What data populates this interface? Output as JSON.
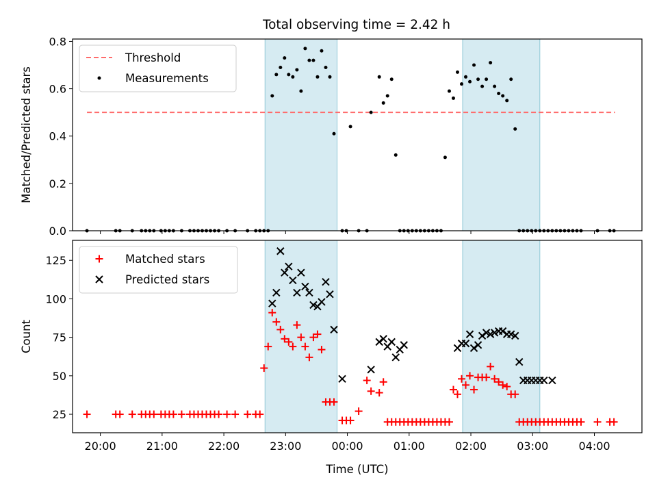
{
  "figure": {
    "title": "Total observing time = 2.42 h"
  },
  "chart_data": [
    {
      "type": "scatter",
      "panel": "top",
      "title": "Total observing time = 2.42 h",
      "xlabel": "",
      "ylabel": "Matched/Predicted stars",
      "xlim": [
        19.55,
        4.77
      ],
      "ylim": [
        0.0,
        0.81
      ],
      "yticks": [
        0.0,
        0.2,
        0.4,
        0.6,
        0.8
      ],
      "ytick_labels": [
        "0.0",
        "0.2",
        "0.4",
        "0.6",
        "0.8"
      ],
      "grid": false,
      "legend": "top-left",
      "shaded_intervals": [
        [
          "22:40",
          "23:50"
        ],
        [
          "01:52",
          "03:07"
        ]
      ],
      "threshold": {
        "name": "Threshold",
        "value": 0.5,
        "x_range": [
          "19:47",
          "04:20"
        ],
        "color": "#ff6b6b"
      },
      "series": [
        {
          "name": "Measurements",
          "color": "#000000",
          "x": [
            "19:47",
            "20:15",
            "20:19",
            "20:31",
            "20:40",
            "20:44",
            "20:48",
            "20:52",
            "20:59",
            "21:03",
            "21:07",
            "21:11",
            "21:19",
            "21:27",
            "21:31",
            "21:35",
            "21:39",
            "21:43",
            "21:47",
            "21:51",
            "21:55",
            "22:03",
            "22:11",
            "22:23",
            "22:31",
            "22:35",
            "22:39",
            "22:43",
            "22:47",
            "22:51",
            "22:55",
            "22:59",
            "23:03",
            "23:07",
            "23:11",
            "23:15",
            "23:19",
            "23:23",
            "23:27",
            "23:31",
            "23:35",
            "23:39",
            "23:43",
            "23:47",
            "23:55",
            "23:59",
            "00:03",
            "00:11",
            "00:19",
            "00:23",
            "00:31",
            "00:35",
            "00:39",
            "00:43",
            "00:47",
            "00:51",
            "00:55",
            "00:59",
            "01:03",
            "01:07",
            "01:11",
            "01:15",
            "01:19",
            "01:23",
            "01:27",
            "01:31",
            "01:35",
            "01:39",
            "01:43",
            "01:47",
            "01:51",
            "01:55",
            "01:59",
            "02:03",
            "02:07",
            "02:11",
            "02:15",
            "02:19",
            "02:23",
            "02:27",
            "02:31",
            "02:35",
            "02:39",
            "02:43",
            "02:47",
            "02:51",
            "02:55",
            "02:59",
            "03:03",
            "03:07",
            "03:11",
            "03:15",
            "03:19",
            "03:23",
            "03:27",
            "03:31",
            "03:35",
            "03:39",
            "03:43",
            "03:47",
            "04:03",
            "04:15",
            "04:19"
          ],
          "y": [
            0.0,
            0.0,
            0.0,
            0.0,
            0.0,
            0.0,
            0.0,
            0.0,
            0.0,
            0.0,
            0.0,
            0.0,
            0.0,
            0.0,
            0.0,
            0.0,
            0.0,
            0.0,
            0.0,
            0.0,
            0.0,
            0.0,
            0.0,
            0.0,
            0.0,
            0.0,
            0.0,
            0.0,
            0.57,
            0.66,
            0.69,
            0.73,
            0.66,
            0.65,
            0.68,
            0.59,
            0.77,
            0.72,
            0.72,
            0.65,
            0.76,
            0.69,
            0.65,
            0.41,
            0.0,
            0.0,
            0.44,
            0.0,
            0.0,
            0.5,
            0.65,
            0.54,
            0.57,
            0.64,
            0.32,
            0.0,
            0.0,
            0.0,
            0.0,
            0.0,
            0.0,
            0.0,
            0.0,
            0.0,
            0.0,
            0.0,
            0.31,
            0.59,
            0.56,
            0.67,
            0.62,
            0.65,
            0.63,
            0.7,
            0.64,
            0.61,
            0.64,
            0.71,
            0.61,
            0.58,
            0.57,
            0.55,
            0.64,
            0.43,
            0.0,
            0.0,
            0.0,
            0.0,
            0.0,
            0.0,
            0.0,
            0.0,
            0.0,
            0.0,
            0.0,
            0.0,
            0.0,
            0.0,
            0.0,
            0.0,
            0.0,
            0.0,
            0.0
          ]
        }
      ]
    },
    {
      "type": "scatter",
      "panel": "bottom",
      "title": "",
      "xlabel": "Time (UTC)",
      "ylabel": "Count",
      "xlim": [
        19.55,
        4.77
      ],
      "ylim": [
        13.0,
        138.0
      ],
      "yticks": [
        25,
        50,
        75,
        100,
        125
      ],
      "ytick_labels": [
        "25",
        "50",
        "75",
        "100",
        "125"
      ],
      "xticks": [
        "20:00",
        "21:00",
        "22:00",
        "23:00",
        "00:00",
        "01:00",
        "02:00",
        "03:00",
        "04:00"
      ],
      "grid": false,
      "legend": "top-left",
      "shaded_intervals": [
        [
          "22:40",
          "23:50"
        ],
        [
          "01:52",
          "03:07"
        ]
      ],
      "series": [
        {
          "name": "Matched stars",
          "color": "#ff0000",
          "marker": "+",
          "x": [
            "19:47",
            "20:15",
            "20:19",
            "20:31",
            "20:40",
            "20:44",
            "20:48",
            "20:52",
            "20:59",
            "21:03",
            "21:07",
            "21:11",
            "21:19",
            "21:27",
            "21:31",
            "21:35",
            "21:39",
            "21:43",
            "21:47",
            "21:51",
            "21:55",
            "22:03",
            "22:11",
            "22:23",
            "22:31",
            "22:35",
            "22:39",
            "22:43",
            "22:47",
            "22:51",
            "22:55",
            "22:59",
            "23:03",
            "23:07",
            "23:11",
            "23:15",
            "23:19",
            "23:23",
            "23:27",
            "23:31",
            "23:35",
            "23:39",
            "23:43",
            "23:47",
            "23:55",
            "23:59",
            "00:03",
            "00:11",
            "00:19",
            "00:23",
            "00:31",
            "00:35",
            "00:39",
            "00:43",
            "00:47",
            "00:51",
            "00:55",
            "00:59",
            "01:03",
            "01:07",
            "01:11",
            "01:15",
            "01:19",
            "01:23",
            "01:27",
            "01:31",
            "01:35",
            "01:39",
            "01:43",
            "01:47",
            "01:51",
            "01:55",
            "01:59",
            "02:03",
            "02:07",
            "02:11",
            "02:15",
            "02:19",
            "02:23",
            "02:27",
            "02:31",
            "02:35",
            "02:39",
            "02:43",
            "02:47",
            "02:51",
            "02:55",
            "02:59",
            "03:03",
            "03:07",
            "03:11",
            "03:15",
            "03:19",
            "03:23",
            "03:27",
            "03:31",
            "03:35",
            "03:39",
            "03:43",
            "03:47",
            "04:03",
            "04:15",
            "04:19"
          ],
          "y": [
            25,
            25,
            25,
            25,
            25,
            25,
            25,
            25,
            25,
            25,
            25,
            25,
            25,
            25,
            25,
            25,
            25,
            25,
            25,
            25,
            25,
            25,
            25,
            25,
            25,
            25,
            55,
            69,
            91,
            85,
            80,
            74,
            72,
            69,
            83,
            75,
            69,
            62,
            75,
            77,
            67,
            33,
            33,
            33,
            21,
            21,
            21,
            27,
            47,
            40,
            39,
            46,
            20,
            20,
            20,
            20,
            20,
            20,
            20,
            20,
            20,
            20,
            20,
            20,
            20,
            20,
            20,
            20,
            41,
            38,
            48,
            44,
            50,
            41,
            49,
            49,
            49,
            56,
            48,
            46,
            44,
            43,
            38,
            38,
            20,
            20,
            20,
            20,
            20,
            20,
            20,
            20,
            20,
            20,
            20,
            20,
            20,
            20,
            20,
            20,
            20,
            20,
            20
          ]
        },
        {
          "name": "Predicted stars",
          "color": "#000000",
          "marker": "x",
          "x": [
            "22:47",
            "22:51",
            "22:55",
            "22:59",
            "23:03",
            "23:07",
            "23:11",
            "23:15",
            "23:19",
            "23:23",
            "23:27",
            "23:31",
            "23:35",
            "23:39",
            "23:43",
            "23:47",
            "23:55",
            "00:23",
            "00:31",
            "00:35",
            "00:39",
            "00:43",
            "00:47",
            "00:51",
            "00:55",
            "01:47",
            "01:51",
            "01:55",
            "01:59",
            "02:03",
            "02:07",
            "02:11",
            "02:15",
            "02:19",
            "02:23",
            "02:27",
            "02:31",
            "02:35",
            "02:39",
            "02:43",
            "02:47",
            "02:51",
            "02:55",
            "02:59",
            "03:03",
            "03:07",
            "03:11",
            "03:19"
          ],
          "y": [
            97,
            104,
            131,
            117,
            121,
            112,
            104,
            117,
            108,
            104,
            96,
            95,
            98,
            111,
            103,
            80,
            48,
            54,
            72,
            74,
            69,
            72,
            62,
            67,
            70,
            68,
            71,
            71,
            77,
            68,
            70,
            76,
            78,
            77,
            78,
            79,
            79,
            77,
            77,
            76,
            59,
            47,
            47,
            47,
            47,
            47,
            47,
            47
          ]
        }
      ]
    }
  ]
}
